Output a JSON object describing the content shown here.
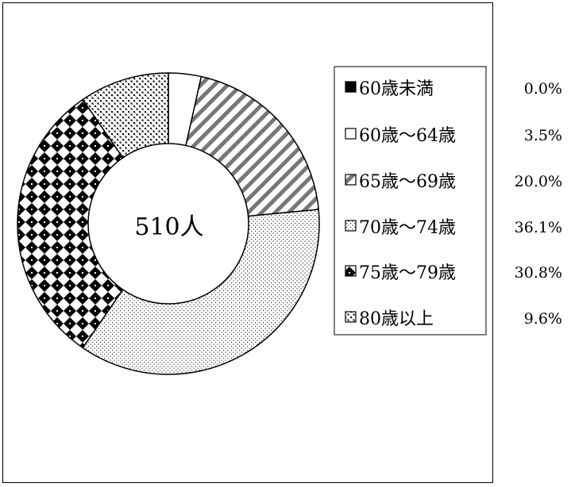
{
  "chart_data": {
    "type": "pie",
    "style": "donut",
    "center_label": "510人",
    "categories": [
      "60歳未満",
      "60歳～64歳",
      "65歳～69歳",
      "70歳～74歳",
      "75歳～79歳",
      "80歳以上"
    ],
    "values": [
      0.0,
      3.5,
      20.0,
      36.1,
      30.8,
      9.6
    ],
    "value_labels": [
      "0.0%",
      "3.5%",
      "20.0%",
      "36.1%",
      "30.8%",
      "9.6%"
    ],
    "patterns": [
      "solid-black",
      "white",
      "diagonal-stripes",
      "fine-dots",
      "diamond-checker",
      "crosshatch-dots"
    ],
    "legend_position": "right",
    "colors": {
      "ink": "#000000",
      "paper": "#ffffff"
    }
  }
}
